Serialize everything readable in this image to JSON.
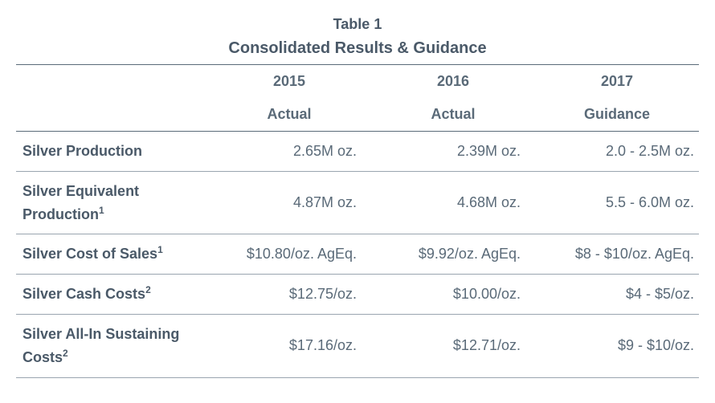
{
  "table": {
    "label": "Table 1",
    "title": "Consolidated Results & Guidance",
    "text_color": "#5a6a78",
    "header_color": "#4a5968",
    "border_color": "#5a6a78",
    "row_border_color": "#9aa5af",
    "background_color": "#ffffff",
    "font_family": "Arial",
    "label_fontsize": 18,
    "title_fontsize": 20,
    "cell_fontsize": 18,
    "columns": {
      "years": [
        "2015",
        "2016",
        "2017"
      ],
      "types": [
        "Actual",
        "Actual",
        "Guidance"
      ]
    },
    "rows": [
      {
        "label": "Silver Production",
        "sup": "",
        "values": [
          "2.65M oz.",
          "2.39M oz.",
          "2.0 - 2.5M oz."
        ]
      },
      {
        "label": "Silver Equivalent Production",
        "sup": "1",
        "values": [
          "4.87M oz.",
          "4.68M oz.",
          "5.5 - 6.0M oz."
        ]
      },
      {
        "label": "Silver Cost of Sales",
        "sup": "1",
        "values": [
          "$10.80/oz. AgEq.",
          "$9.92/oz. AgEq.",
          "$8 - $10/oz. AgEq."
        ]
      },
      {
        "label": "Silver Cash Costs",
        "sup": "2",
        "values": [
          "$12.75/oz.",
          "$10.00/oz.",
          "$4 - $5/oz."
        ]
      },
      {
        "label": "Silver All-In Sustaining Costs",
        "sup": "2",
        "values": [
          "$17.16/oz.",
          "$12.71/oz.",
          "$9 - $10/oz."
        ]
      }
    ]
  }
}
